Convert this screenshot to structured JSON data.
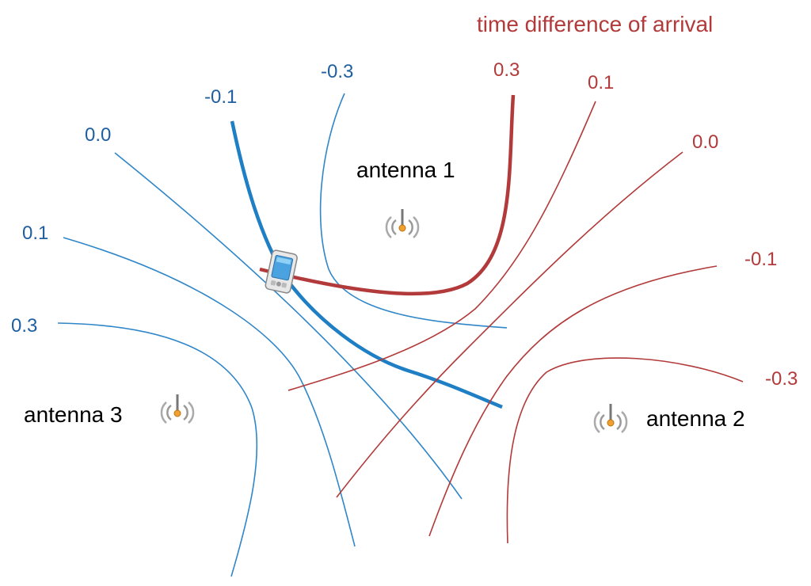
{
  "title": "time difference of arrival",
  "colors": {
    "blue": "#2f86c8",
    "red": "#b23a3a",
    "text": "#000000"
  },
  "blue_curves": {
    "label_minus_0_3": "-0.3",
    "label_minus_0_1": "-0.1",
    "label_0_0": "0.0",
    "label_0_1": "0.1",
    "label_0_3": "0.3"
  },
  "red_curves": {
    "label_0_3": "0.3",
    "label_0_1": "0.1",
    "label_0_0": "0.0",
    "label_minus_0_1": "-0.1",
    "label_minus_0_3": "-0.3"
  },
  "antennas": {
    "antenna_1": "antenna 1",
    "antenna_2": "antenna 2",
    "antenna_3": "antenna 3"
  },
  "icons": {
    "antenna": "antenna-signal-icon",
    "device": "mobile-device-icon"
  }
}
